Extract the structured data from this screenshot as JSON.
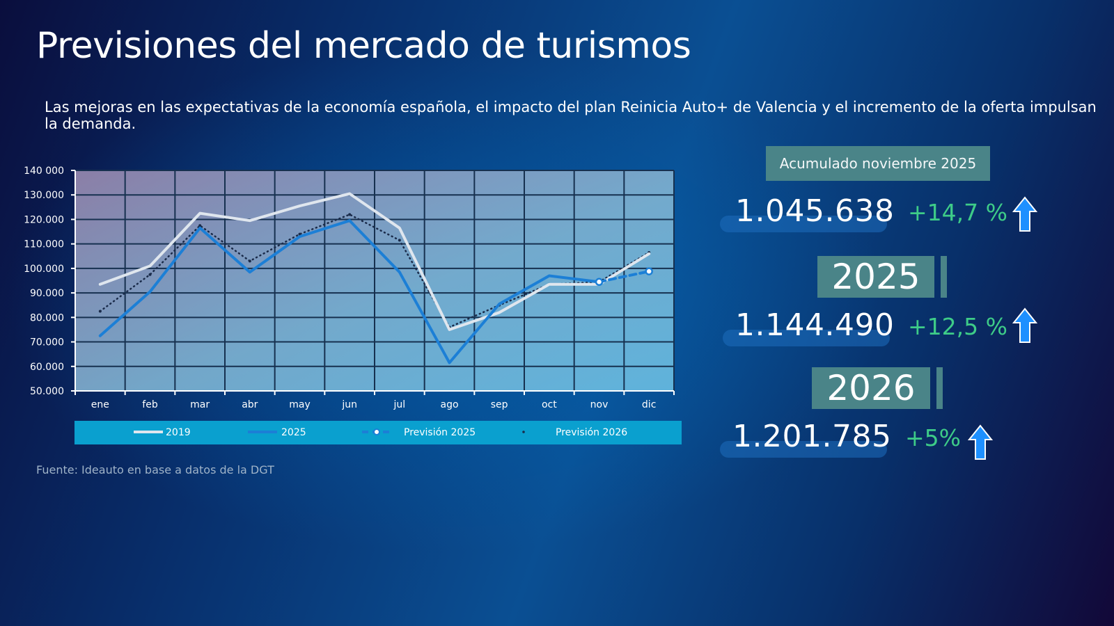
{
  "header": {
    "title": "Previsiones del mercado de turismos",
    "subtitle": "Las mejoras en las expectativas de la economía española, el impacto del plan Reinicia Auto+ de Valencia y el incremento de la oferta impulsan la demanda."
  },
  "source": "Fuente: Ideauto en base a datos de la DGT",
  "chart_data": {
    "type": "line",
    "title": "",
    "xlabel": "",
    "ylabel": "",
    "categories": [
      "ene",
      "feb",
      "mar",
      "abr",
      "may",
      "jun",
      "jul",
      "ago",
      "sep",
      "oct",
      "nov",
      "dic"
    ],
    "ylim": [
      50000,
      140000
    ],
    "ytick_labels": [
      "140 000",
      "130.000",
      "120.000",
      "110.000",
      "100.000",
      "90.000",
      "80.000",
      "70.000",
      "60.000",
      "50.000"
    ],
    "grid": true,
    "legend_position": "bottom",
    "series": [
      {
        "name": "2019",
        "color": "#dfe6ee",
        "style": "solid",
        "values": [
          93500,
          101000,
          122500,
          119500,
          125500,
          130500,
          116500,
          75000,
          82000,
          93500,
          93500,
          106000
        ]
      },
      {
        "name": "2025",
        "color": "#1c7fd6",
        "style": "solid",
        "values": [
          72500,
          90500,
          116500,
          98500,
          113000,
          119500,
          98500,
          61500,
          85500,
          97000,
          94500,
          null
        ]
      },
      {
        "name": "Previsión 2025",
        "color": "#1c7fd6",
        "style": "dashed-marker",
        "values": [
          null,
          null,
          null,
          null,
          null,
          null,
          null,
          null,
          null,
          null,
          94500,
          98800
        ]
      },
      {
        "name": "Previsión 2026",
        "color": "#1a2b4a",
        "style": "dotted",
        "values": [
          82500,
          97500,
          117500,
          103000,
          114000,
          122000,
          111500,
          76000,
          85000,
          93500,
          94500,
          106500
        ]
      }
    ]
  },
  "stats": {
    "header": "Acumulado noviembre 2025",
    "row1": {
      "value": "1.045.638",
      "change": "+14,7 %"
    },
    "year1": "2025",
    "row2": {
      "value": "1.144.490",
      "change": "+12,5 %"
    },
    "year2": "2026",
    "row3": {
      "value": "1.201.785",
      "change": "+5%"
    },
    "colors": {
      "positive": "#3ecc88",
      "box": "#4a8488",
      "arrow": "#1e90ff"
    }
  }
}
